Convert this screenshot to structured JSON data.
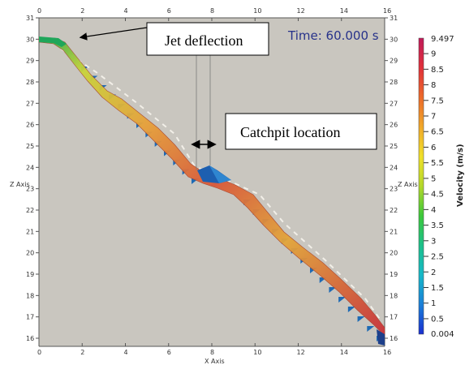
{
  "time_label": "Time: 60.000 s",
  "callouts": {
    "jet_deflection": "Jet deflection",
    "catchpit_location": "Catchpit location"
  },
  "axes": {
    "x_ticks": [
      "0",
      "2",
      "4",
      "6",
      "8",
      "10",
      "12",
      "14",
      "16"
    ],
    "z_ticks": [
      "16",
      "17",
      "18",
      "19",
      "20",
      "21",
      "22",
      "23",
      "24",
      "25",
      "26",
      "27",
      "28",
      "29",
      "30",
      "31"
    ],
    "left_title": "Z Axis",
    "right_title": "Z Axis",
    "bottom_title": "X Axis"
  },
  "colorbar": {
    "title": "Velocity (m/s)",
    "max_label": "9.497",
    "min_label": "0.004",
    "labels": [
      "9",
      "8.5",
      "8",
      "7.5",
      "7",
      "6.5",
      "6",
      "5.5",
      "5",
      "4.5",
      "4",
      "3.5",
      "3",
      "2.5",
      "2",
      "1.5",
      "1",
      "0.5"
    ]
  },
  "colors": {
    "background": "#c9c6bf",
    "time_text": "#27328a",
    "step_blue": "#1e6ab4"
  }
}
